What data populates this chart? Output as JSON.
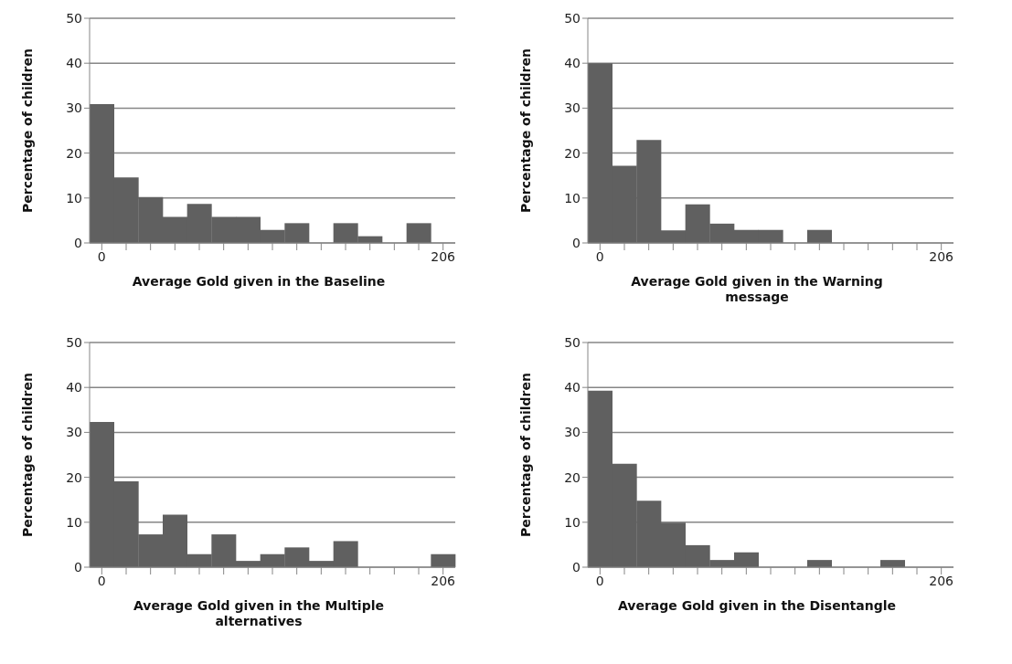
{
  "chart_data": [
    {
      "type": "bar",
      "xlabel": "Average Gold given in the Baseline",
      "ylabel": "Percentage of children",
      "categories": [
        "0",
        null,
        null,
        null,
        null,
        null,
        null,
        null,
        null,
        null,
        null,
        null,
        null,
        null,
        "206"
      ],
      "values": [
        30.9,
        14.6,
        10.2,
        5.8,
        8.7,
        5.8,
        5.8,
        2.9,
        4.4,
        0,
        4.4,
        1.5,
        0,
        4.4,
        0
      ],
      "color": "#606060",
      "ylim": [
        0,
        50
      ],
      "yticks": [
        0,
        10,
        20,
        30,
        40,
        50
      ],
      "grid": "y"
    },
    {
      "type": "bar",
      "xlabel": "Average Gold given in the Warning message",
      "ylabel": "Percentage of children",
      "categories": [
        "0",
        null,
        null,
        null,
        null,
        null,
        null,
        null,
        null,
        null,
        null,
        null,
        null,
        null,
        "206"
      ],
      "values": [
        40.0,
        17.2,
        22.9,
        2.8,
        8.6,
        4.3,
        2.9,
        2.9,
        0,
        2.9,
        0,
        0,
        0,
        0,
        0
      ],
      "color": "#606060",
      "ylim": [
        0,
        50
      ],
      "yticks": [
        0,
        10,
        20,
        30,
        40,
        50
      ],
      "grid": "y"
    },
    {
      "type": "bar",
      "xlabel": "Average Gold given in the Multiple alternatives",
      "ylabel": "Percentage of children",
      "categories": [
        "0",
        null,
        null,
        null,
        null,
        null,
        null,
        null,
        null,
        null,
        null,
        null,
        null,
        null,
        "206"
      ],
      "values": [
        32.3,
        19.1,
        7.3,
        11.7,
        2.9,
        7.3,
        1.4,
        2.9,
        4.4,
        1.4,
        5.8,
        0,
        0,
        0,
        2.9
      ],
      "color": "#606060",
      "ylim": [
        0,
        50
      ],
      "yticks": [
        0,
        10,
        20,
        30,
        40,
        50
      ],
      "grid": "y"
    },
    {
      "type": "bar",
      "xlabel": "Average Gold given in the Disentangle",
      "ylabel": "Percentage of children",
      "categories": [
        "0",
        null,
        null,
        null,
        null,
        null,
        null,
        null,
        null,
        null,
        null,
        null,
        null,
        null,
        "206"
      ],
      "values": [
        39.3,
        23.0,
        14.8,
        9.9,
        4.9,
        1.6,
        3.3,
        0,
        0,
        1.6,
        0,
        0,
        1.6,
        0,
        0
      ],
      "color": "#606060",
      "ylim": [
        0,
        50
      ],
      "yticks": [
        0,
        10,
        20,
        30,
        40,
        50
      ],
      "grid": "y"
    }
  ]
}
